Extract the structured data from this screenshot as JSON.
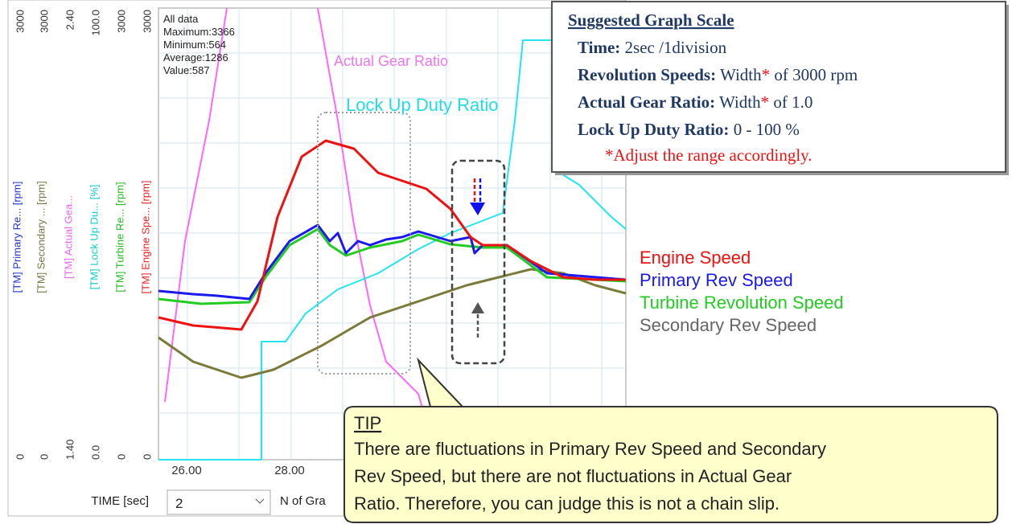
{
  "axis_panel": {
    "max_labels": [
      "3000",
      "3000",
      "2.40",
      "100.0",
      "3000",
      "3000"
    ],
    "min_labels": [
      "0",
      "0",
      "1.40",
      "0.0",
      "0",
      "0"
    ],
    "channels": [
      "[TM] Primary Re... [rpm]",
      "[TM] Secondary ... [rpm]",
      "[TM] Actual Gea...",
      "[TM] Lock Up Du... [%]",
      "[TM] Turbine Re... [rpm]",
      "[TM] Engine Spe... [rpm]"
    ]
  },
  "stats": [
    "All data",
    "Maximum:3366",
    "Minimum:564",
    "Average:1286",
    "Value:587"
  ],
  "trace_labels": [
    "Actual Gear Ratio",
    "Lock Up Duty Ratio"
  ],
  "x_ticks": [
    "26.00",
    "28.00"
  ],
  "legend": [
    "Engine Speed",
    "Primary Rev Speed",
    "Turbine Revolution Speed",
    "Secondary Rev Speed"
  ],
  "scale_box": {
    "title": "Suggested Graph Scale",
    "rows": [
      {
        "label": "Time:",
        "value": "2sec /1division"
      },
      {
        "label": "Revolution Speeds:",
        "value": "Width",
        "mark": "*",
        "rest": "of 3000 rpm"
      },
      {
        "label": "Actual Gear Ratio:",
        "value": "Width",
        "mark": "*",
        "rest": "of 1.0"
      },
      {
        "label": "Lock Up Duty Ratio:",
        "value": "0 - 100 %"
      }
    ],
    "note": "*Adjust the range accordingly."
  },
  "controls": {
    "time_label": "TIME [sec]",
    "time_value": "2",
    "n_label": "N of Gra"
  },
  "tip": {
    "title": "TIP",
    "lines": [
      "There are fluctuations in Primary Rev Speed and Secondary",
      "Rev Speed, but there are not fluctuations in Actual Gear",
      "Ratio. Therefore, you can judge this is not a chain slip."
    ]
  }
}
